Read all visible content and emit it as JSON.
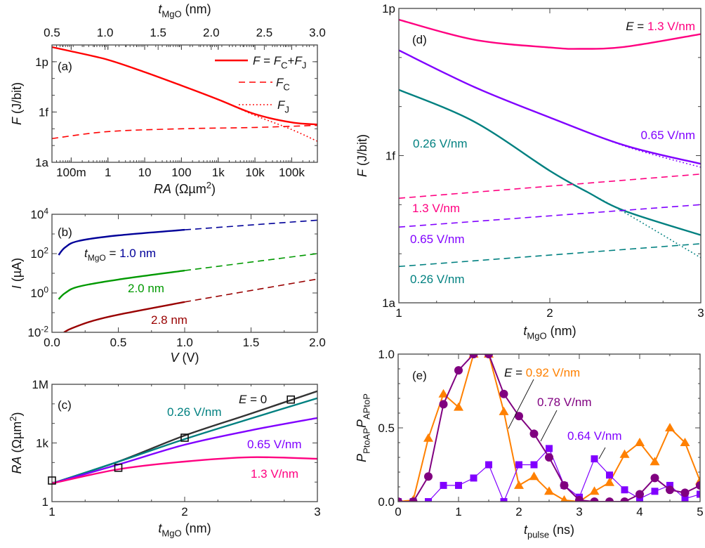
{
  "chart_data": [
    {
      "panel_label": "(a)",
      "type": "line",
      "xscale": "log",
      "xlim": [
        0.03,
        500000
      ],
      "yscale": "log",
      "ylim": [
        1e-18,
        1e-11
      ],
      "xlabel": [
        {
          "t": "RA",
          "i": 1
        },
        {
          "t": " (Ωµm"
        },
        {
          "t": "2",
          "sup": 1
        },
        {
          "t": ")"
        }
      ],
      "ylabel": [
        {
          "t": "F",
          "i": 1
        },
        {
          "t": " (J/bit)"
        }
      ],
      "xticks": [
        {
          "v": 0.1,
          "label": "100m"
        },
        {
          "v": 1,
          "label": "1"
        },
        {
          "v": 10,
          "label": "10"
        },
        {
          "v": 100,
          "label": "100"
        },
        {
          "v": 1000,
          "label": "1k"
        },
        {
          "v": 10000,
          "label": "10k"
        },
        {
          "v": 100000,
          "label": "100k"
        }
      ],
      "yticks": [
        {
          "v": 1e-12,
          "label": "1p"
        },
        {
          "v": 1e-15,
          "label": "1f"
        },
        {
          "v": 1e-18,
          "label": "1a"
        }
      ],
      "top_axis": {
        "label": [
          {
            "t": "t",
            "i": 1
          },
          {
            "t": "MgO",
            "sub": 1
          },
          {
            "t": " (nm)"
          }
        ],
        "lim": [
          0.5,
          3.0
        ],
        "ticks": [
          {
            "v": 0.5,
            "label": "0.5"
          },
          {
            "v": 1.0,
            "label": "1.0"
          },
          {
            "v": 1.5,
            "label": "1.5"
          },
          {
            "v": 2.0,
            "label": "2.0"
          },
          {
            "v": 2.5,
            "label": "2.5"
          },
          {
            "v": 3.0,
            "label": "3.0"
          }
        ]
      },
      "legend_position": "top-right",
      "series": [
        {
          "name": [
            {
              "t": "F",
              "i": 1
            },
            {
              "t": " = "
            },
            {
              "t": "F",
              "i": 1
            },
            {
              "t": "C",
              "sub": 1
            },
            {
              "t": "+"
            },
            {
              "t": "F",
              "i": 1
            },
            {
              "t": "J",
              "sub": 1
            }
          ],
          "style": "solid",
          "color": "#ff0000",
          "x": [
            0.03,
            0.1,
            1,
            10,
            100,
            1000,
            10000,
            100000,
            500000
          ],
          "y": [
            7.5e-12,
            4.2e-12,
            1.3e-12,
            2.4e-13,
            3.8e-14,
            5.6e-15,
            7.5e-16,
            2.4e-16,
            1.8e-16
          ]
        },
        {
          "name": [
            {
              "t": "F",
              "i": 1
            },
            {
              "t": "C",
              "sub": 1
            }
          ],
          "style": "dashed",
          "color": "#ff0000",
          "x": [
            0.03,
            1,
            100,
            10000,
            500000
          ],
          "y": [
            2.6e-17,
            6.8e-17,
            1e-16,
            1.2e-16,
            1.6e-16
          ]
        },
        {
          "name": [
            {
              "t": "F",
              "i": 1
            },
            {
              "t": "J",
              "sub": 1
            }
          ],
          "style": "dotted",
          "color": "#ff0000",
          "x": [
            0.03,
            0.1,
            1,
            10,
            100,
            1000,
            10000,
            100000,
            500000
          ],
          "y": [
            7.5e-12,
            4.2e-12,
            1.3e-12,
            2.4e-13,
            3.8e-14,
            5.6e-15,
            6.3e-16,
            9e-17,
            1.8e-17
          ]
        }
      ],
      "annotations": []
    },
    {
      "panel_label": "(b)",
      "type": "line",
      "xscale": "linear",
      "xlim": [
        0,
        2
      ],
      "yscale": "log",
      "ylim": [
        0.01,
        10000
      ],
      "xlabel": [
        {
          "t": "V",
          "i": 1
        },
        {
          "t": " (V)"
        }
      ],
      "ylabel": [
        {
          "t": "I",
          "i": 1
        },
        {
          "t": " (µA)"
        }
      ],
      "xticks": [
        {
          "v": 0,
          "label": "0.0"
        },
        {
          "v": 0.5,
          "label": "0.5"
        },
        {
          "v": 1,
          "label": "1.0"
        },
        {
          "v": 1.5,
          "label": "1.5"
        },
        {
          "v": 2,
          "label": "2.0"
        }
      ],
      "yticks": [
        {
          "v": 10000,
          "label": [
            {
              "t": "10"
            },
            {
              "t": "4",
              "sup": 1
            }
          ]
        },
        {
          "v": 100,
          "label": [
            {
              "t": "10"
            },
            {
              "t": "2",
              "sup": 1
            }
          ]
        },
        {
          "v": 1,
          "label": [
            {
              "t": "10"
            },
            {
              "t": "0",
              "sup": 1
            }
          ]
        },
        {
          "v": 0.01,
          "label": [
            {
              "t": "10"
            },
            {
              "t": "-2",
              "sup": 1
            }
          ]
        }
      ],
      "series": [
        {
          "style": "solid",
          "color": "#000099",
          "x": [
            0.05,
            0.1,
            0.2,
            0.5,
            1.0
          ],
          "y": [
            85,
            210,
            440,
            850,
            1620
          ]
        },
        {
          "style": "dashed",
          "color": "#000099",
          "x": [
            1.0,
            2.0
          ],
          "y": [
            1620,
            5000
          ]
        },
        {
          "style": "solid",
          "color": "#009900",
          "x": [
            0.05,
            0.1,
            0.2,
            0.5,
            1.0
          ],
          "y": [
            0.48,
            1.0,
            2.1,
            4.8,
            13.8
          ]
        },
        {
          "style": "dashed",
          "color": "#009900",
          "x": [
            1.0,
            2.0
          ],
          "y": [
            13.8,
            100
          ]
        },
        {
          "style": "solid",
          "color": "#990000",
          "x": [
            0.09,
            0.15,
            0.3,
            0.5,
            1.0
          ],
          "y": [
            0.01,
            0.016,
            0.037,
            0.079,
            0.35
          ]
        },
        {
          "style": "dashed",
          "color": "#990000",
          "x": [
            1.0,
            2.0
          ],
          "y": [
            0.35,
            5.1
          ]
        }
      ],
      "annotations": [
        [
          {
            "t": "t",
            "i": 1
          },
          {
            "t": "MgO",
            "sub": 1
          },
          {
            "t": " = "
          },
          {
            "t": "1.0 nm",
            "c": "#000099"
          }
        ],
        [
          {
            "t": "2.0 nm",
            "c": "#009900"
          }
        ],
        [
          {
            "t": "2.8 nm",
            "c": "#990000"
          }
        ]
      ]
    },
    {
      "panel_label": "(c)",
      "type": "line",
      "xscale": "linear",
      "xlim": [
        1,
        3
      ],
      "yscale": "log",
      "ylim": [
        1,
        1000000
      ],
      "xlabel": [
        {
          "t": "t",
          "i": 1
        },
        {
          "t": "MgO",
          "sub": 1
        },
        {
          "t": " (nm)"
        }
      ],
      "ylabel": [
        {
          "t": "RA",
          "i": 1
        },
        {
          "t": " (Ωµm"
        },
        {
          "t": "2",
          "sup": 1
        },
        {
          "t": ")"
        }
      ],
      "xticks": [
        {
          "v": 1,
          "label": "1"
        },
        {
          "v": 2,
          "label": "2"
        },
        {
          "v": 3,
          "label": "3"
        }
      ],
      "yticks": [
        {
          "v": 1000000,
          "label": "1M"
        },
        {
          "v": 1000,
          "label": "1k"
        },
        {
          "v": 1,
          "label": "1"
        }
      ],
      "series": [
        {
          "style": "solid",
          "color": "#333333",
          "x": [
            1,
            1.5,
            2,
            2.5,
            3
          ],
          "y": [
            8.5,
            112,
            2400,
            32000,
            450000
          ]
        },
        {
          "style": "solid",
          "color": "#008080",
          "x": [
            1,
            1.5,
            2,
            2.5,
            3
          ],
          "y": [
            8.5,
            110,
            1580,
            18000,
            195000
          ]
        },
        {
          "style": "solid",
          "color": "#8000ff",
          "x": [
            1,
            1.5,
            2,
            2.5,
            3
          ],
          "y": [
            8.5,
            79,
            810,
            4470,
            19000
          ]
        },
        {
          "style": "solid",
          "color": "#ff0080",
          "x": [
            1,
            1.5,
            2,
            2.5,
            3
          ],
          "y": [
            8.5,
            45,
            112,
            186,
            155
          ]
        },
        {
          "style": "markers",
          "marker": "open-square",
          "color": "#111111",
          "x": [
            1,
            1.5,
            2,
            2.8
          ],
          "y": [
            12,
            54,
            1860,
            166000
          ]
        }
      ],
      "annotations": [
        [
          {
            "t": "E",
            "i": 1
          },
          {
            "t": " = 0"
          }
        ],
        [
          {
            "t": "0.26 V/nm",
            "c": "#008080"
          }
        ],
        [
          {
            "t": "0.65 V/nm",
            "c": "#8000ff"
          }
        ],
        [
          {
            "t": "1.3 V/nm",
            "c": "#ff0080"
          }
        ]
      ]
    },
    {
      "panel_label": "(d)",
      "type": "line",
      "xscale": "linear",
      "xlim": [
        1,
        3
      ],
      "yscale": "log",
      "ylim": [
        1e-18,
        1e-12
      ],
      "xlabel": [
        {
          "t": "t",
          "i": 1
        },
        {
          "t": "MgO",
          "sub": 1
        },
        {
          "t": " (nm)"
        }
      ],
      "ylabel": [
        {
          "t": "F",
          "i": 1
        },
        {
          "t": " (J/bit)"
        }
      ],
      "xticks": [
        {
          "v": 1,
          "label": "1"
        },
        {
          "v": 2,
          "label": "2"
        },
        {
          "v": 3,
          "label": "3"
        }
      ],
      "yticks": [
        {
          "v": 1e-12,
          "label": "1p"
        },
        {
          "v": 1e-15,
          "label": "1f"
        },
        {
          "v": 1e-18,
          "label": "1a"
        }
      ],
      "series": [
        {
          "style": "solid",
          "color": "#ff0080",
          "x": [
            1,
            1.5,
            2,
            2.2,
            2.5,
            3
          ],
          "y": [
            5.9e-13,
            2.3e-13,
            1.6e-13,
            1.5e-13,
            1.65e-13,
            3e-13
          ]
        },
        {
          "style": "dotted",
          "color": "#8000ff",
          "x": [
            2,
            2.5,
            3
          ],
          "y": [
            6e-15,
            1.55e-15,
            5.8e-16
          ]
        },
        {
          "style": "solid",
          "color": "#8000ff",
          "x": [
            1,
            1.5,
            2,
            2.5,
            3
          ],
          "y": [
            1.4e-13,
            2.5e-14,
            6e-15,
            1.6e-15,
            6.8e-16
          ]
        },
        {
          "style": "dotted",
          "color": "#008080",
          "x": [
            2.25,
            2.5,
            3
          ],
          "y": [
            1.8e-16,
            6.8e-17,
            8.3e-18
          ]
        },
        {
          "style": "solid",
          "color": "#008080",
          "x": [
            1,
            1.5,
            2,
            2.25,
            2.5,
            3
          ],
          "y": [
            2.2e-14,
            4.9e-15,
            4.9e-16,
            1.8e-16,
            7.4e-17,
            2.4e-17
          ]
        },
        {
          "style": "dashed",
          "color": "#ff0080",
          "x": [
            1,
            3
          ],
          "y": [
            1.35e-16,
            4.2e-16
          ]
        },
        {
          "style": "dashed",
          "color": "#8000ff",
          "x": [
            1,
            3
          ],
          "y": [
            3.5e-17,
            1e-16
          ]
        },
        {
          "style": "dashed",
          "color": "#008080",
          "x": [
            1,
            3
          ],
          "y": [
            5.5e-18,
            1.6e-17
          ]
        }
      ],
      "annotations": [
        [
          {
            "t": "E",
            "i": 1
          },
          {
            "t": " = "
          },
          {
            "t": "1.3 V/nm",
            "c": "#ff0080"
          }
        ],
        [
          {
            "t": "0.65 V/nm",
            "c": "#8000ff"
          }
        ],
        [
          {
            "t": "0.26 V/nm",
            "c": "#008080"
          }
        ],
        [
          {
            "t": "1.3 V/nm",
            "c": "#ff0080"
          }
        ],
        [
          {
            "t": "0.65 V/nm",
            "c": "#8000ff"
          }
        ],
        [
          {
            "t": "0.26 V/nm",
            "c": "#008080"
          }
        ]
      ]
    },
    {
      "panel_label": "(e)",
      "type": "line",
      "xscale": "linear",
      "xlim": [
        0,
        5
      ],
      "yscale": "linear",
      "ylim": [
        0,
        1
      ],
      "xlabel": [
        {
          "t": "t",
          "i": 1
        },
        {
          "t": "pulse",
          "sub": 1
        },
        {
          "t": " (ns)"
        }
      ],
      "ylabel": [
        {
          "t": "P",
          "i": 1
        },
        {
          "t": "PtoAP",
          "sub": 1
        },
        {
          "t": "P",
          "i": 1
        },
        {
          "t": "APtoP",
          "sub": 1
        }
      ],
      "xticks": [
        {
          "v": 0,
          "label": "0"
        },
        {
          "v": 1,
          "label": "1"
        },
        {
          "v": 2,
          "label": "2"
        },
        {
          "v": 3,
          "label": "3"
        },
        {
          "v": 4,
          "label": "4"
        },
        {
          "v": 5,
          "label": "5"
        }
      ],
      "yticks": [
        {
          "v": 0,
          "label": "0.0"
        },
        {
          "v": 0.5,
          "label": "0.5"
        },
        {
          "v": 1,
          "label": "1.0"
        }
      ],
      "series": [
        {
          "style": "line+markers",
          "marker": "triangle",
          "color": "#ff8000",
          "x": [
            0,
            0.25,
            0.5,
            0.75,
            1,
            1.25,
            1.5,
            1.75,
            2,
            2.25,
            2.5,
            2.75,
            3,
            3.25,
            3.5,
            3.75,
            4,
            4.25,
            4.5,
            4.75,
            5
          ],
          "y": [
            0,
            0.01,
            0.43,
            0.73,
            0.64,
            1.0,
            1.0,
            0.61,
            0.11,
            0.17,
            0.07,
            0.01,
            0.0,
            0.07,
            0.13,
            0.32,
            0.4,
            0.27,
            0.5,
            0.4,
            0.14
          ]
        },
        {
          "style": "line+markers",
          "marker": "square",
          "color": "#8000ff",
          "x": [
            0,
            0.25,
            0.5,
            0.75,
            1,
            1.25,
            1.5,
            1.75,
            2,
            2.25,
            2.5,
            2.75,
            3,
            3.25,
            3.5,
            3.75,
            4,
            4.25,
            4.5,
            4.75,
            5
          ],
          "y": [
            0,
            0,
            0,
            0.11,
            0.11,
            0.16,
            0.25,
            0,
            0.25,
            0.25,
            0.36,
            0.11,
            0.03,
            0.29,
            0.18,
            0.08,
            0.02,
            0.07,
            0.11,
            0.02,
            0.05
          ]
        },
        {
          "style": "line+markers",
          "marker": "circle",
          "color": "#800080",
          "x": [
            0,
            0.25,
            0.5,
            0.75,
            1,
            1.25,
            1.5,
            1.75,
            2,
            2.25,
            2.5,
            2.75,
            3,
            3.25,
            3.5,
            3.75,
            4,
            4.25,
            4.5,
            4.75,
            5
          ],
          "y": [
            0,
            0,
            0.17,
            0.66,
            0.89,
            1.0,
            1.0,
            0.73,
            0.58,
            0.46,
            0.3,
            0.11,
            0.01,
            0,
            0,
            0,
            0.05,
            0.16,
            0.08,
            0.06,
            0.11
          ]
        }
      ],
      "annotations": [
        [
          {
            "t": "E",
            "i": 1
          },
          {
            "t": " = "
          },
          {
            "t": "0.92 V/nm",
            "c": "#ff8000"
          }
        ],
        [
          {
            "t": "0.78 V/nm",
            "c": "#800080"
          }
        ],
        [
          {
            "t": "0.64 V/nm",
            "c": "#8000ff"
          }
        ]
      ]
    }
  ]
}
